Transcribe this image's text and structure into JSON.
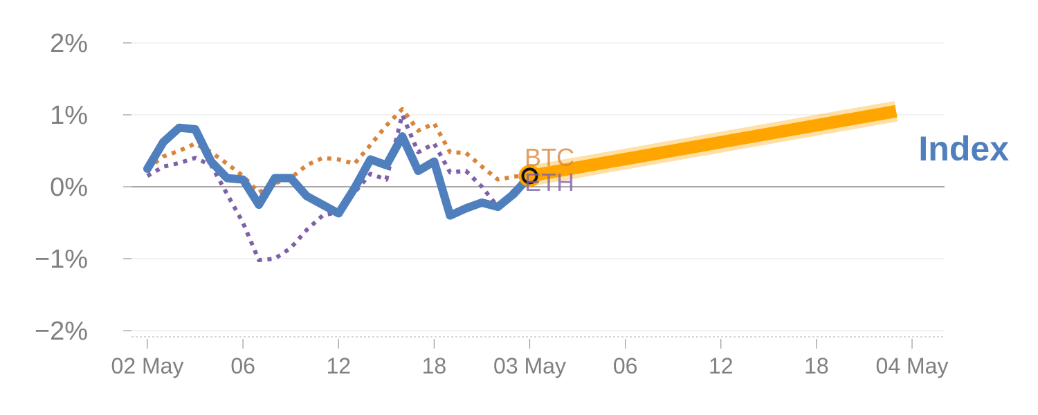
{
  "chart_data": {
    "type": "line",
    "title": "",
    "xlabel": "",
    "ylabel": "",
    "ylim": [
      -2,
      2
    ],
    "xlim": [
      0,
      48
    ],
    "y_ticks": [
      {
        "value": 2,
        "label": "2%"
      },
      {
        "value": 1,
        "label": "1%"
      },
      {
        "value": 0,
        "label": "0%"
      },
      {
        "value": -1,
        "label": "−1%"
      },
      {
        "value": -2,
        "label": "−2%"
      }
    ],
    "x_ticks": [
      {
        "hour": 0,
        "label": "02 May"
      },
      {
        "hour": 6,
        "label": "06"
      },
      {
        "hour": 12,
        "label": "12"
      },
      {
        "hour": 18,
        "label": "18"
      },
      {
        "hour": 24,
        "label": "03 May"
      },
      {
        "hour": 30,
        "label": "06"
      },
      {
        "hour": 36,
        "label": "12"
      },
      {
        "hour": 42,
        "label": "18"
      },
      {
        "hour": 48,
        "label": "04 May"
      }
    ],
    "series": [
      {
        "name": "BTC",
        "label": "BTC",
        "color": "#d9843b",
        "style": "dotted",
        "x": [
          0,
          1,
          2,
          3,
          4,
          5,
          6,
          7,
          8,
          9,
          10,
          11,
          12,
          13,
          14,
          15,
          16,
          17,
          18,
          19,
          20,
          21,
          22,
          23,
          24
        ],
        "y": [
          0.25,
          0.42,
          0.5,
          0.6,
          0.48,
          0.32,
          0.15,
          -0.08,
          0.05,
          0.12,
          0.3,
          0.4,
          0.38,
          0.32,
          0.58,
          0.85,
          1.08,
          0.78,
          0.88,
          0.48,
          0.47,
          0.28,
          0.1,
          0.14,
          0.16
        ]
      },
      {
        "name": "ETH",
        "label": "ETH",
        "color": "#7f60a8",
        "style": "dotted",
        "x": [
          0,
          1,
          2,
          3,
          4,
          5,
          6,
          7,
          8,
          9,
          10,
          11,
          12,
          13,
          14,
          15,
          16,
          17,
          18,
          19,
          20,
          21,
          22,
          23,
          24
        ],
        "y": [
          0.15,
          0.28,
          0.33,
          0.4,
          0.3,
          -0.1,
          -0.5,
          -1.02,
          -1.0,
          -0.85,
          -0.6,
          -0.4,
          -0.35,
          -0.08,
          0.18,
          0.1,
          1.0,
          0.48,
          0.6,
          0.2,
          0.22,
          0.0,
          -0.28,
          -0.05,
          0.12
        ]
      },
      {
        "name": "Index",
        "label": "Index",
        "color": "#4f7fbd",
        "style": "solid",
        "x": [
          0,
          1,
          2,
          3,
          4,
          5,
          6,
          7,
          8,
          9,
          10,
          11,
          12,
          13,
          14,
          15,
          16,
          17,
          18,
          19,
          20,
          21,
          22,
          23,
          24
        ],
        "y": [
          0.25,
          0.62,
          0.82,
          0.8,
          0.35,
          0.12,
          0.1,
          -0.25,
          0.12,
          0.12,
          -0.13,
          -0.25,
          -0.37,
          -0.02,
          0.38,
          0.3,
          0.7,
          0.22,
          0.35,
          -0.4,
          -0.3,
          -0.22,
          -0.28,
          -0.1,
          0.15
        ]
      },
      {
        "name": "Forecast",
        "label": "",
        "color": "#ffa500",
        "style": "thick",
        "x": [
          24,
          47
        ],
        "y": [
          0.15,
          1.05
        ]
      }
    ],
    "marker": {
      "x": 24,
      "y": 0.15,
      "color": "#ffa500"
    },
    "zero_line": true
  }
}
